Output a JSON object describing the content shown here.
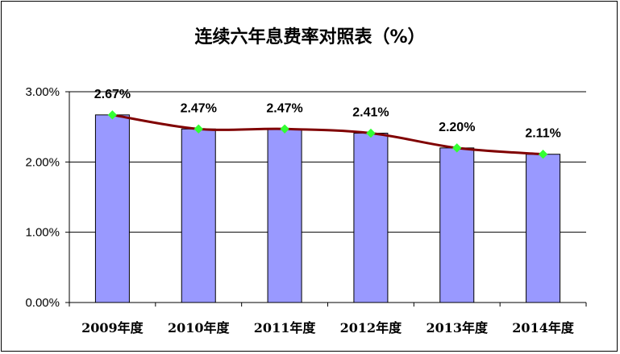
{
  "chart_data": {
    "type": "bar",
    "title": "连续六年息费率对照表（%）",
    "categories": [
      "2009年度",
      "2010年度",
      "2011年度",
      "2012年度",
      "2013年度",
      "2014年度"
    ],
    "values": [
      2.67,
      2.47,
      2.47,
      2.41,
      2.2,
      2.11
    ],
    "data_labels": [
      "2.67%",
      "2.47%",
      "2.47%",
      "2.41%",
      "2.20%",
      "2.11%"
    ],
    "y_ticks": [
      0,
      1,
      2,
      3
    ],
    "y_tick_labels": [
      "0.00%",
      "1.00%",
      "2.00%",
      "3.00%"
    ],
    "ylim": [
      0,
      3
    ],
    "overlay_line": true,
    "grid": "horizontal",
    "colors": {
      "bar_fill": "#9999ff",
      "bar_stroke": "#000000",
      "line": "#800000",
      "marker": "#33ff33"
    }
  }
}
